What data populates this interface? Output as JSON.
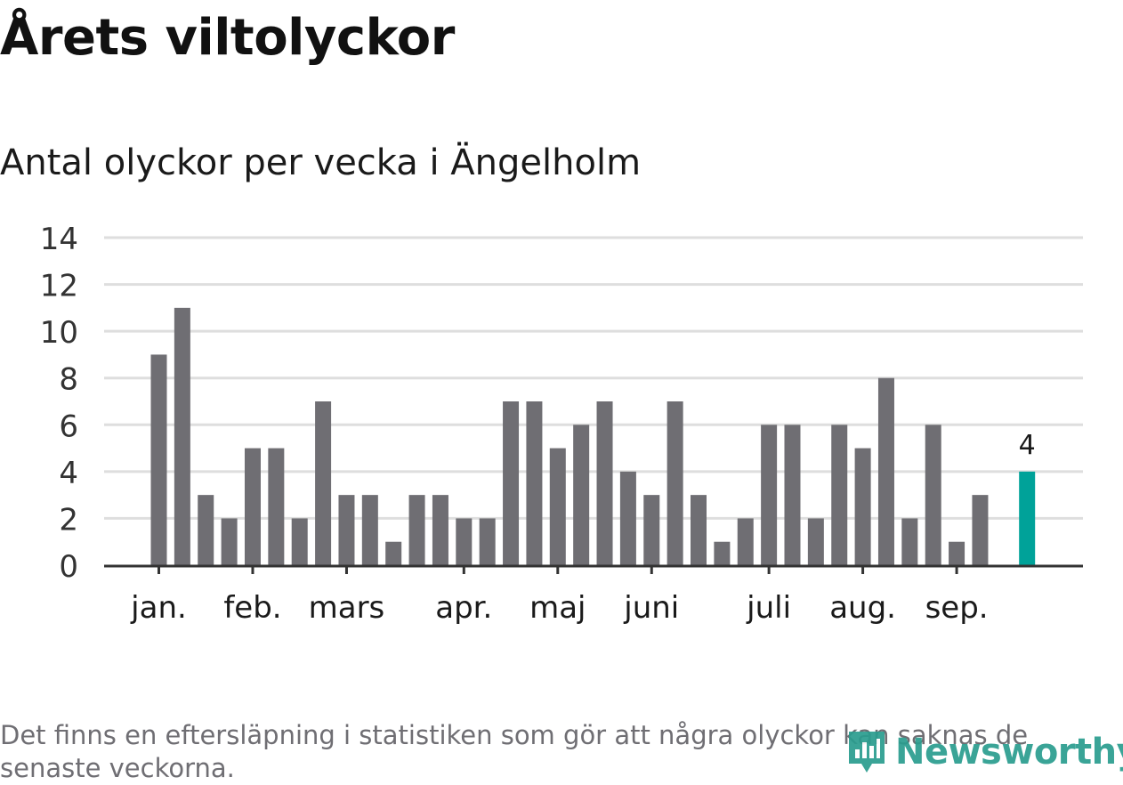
{
  "title": "Årets viltolyckor",
  "subtitle": "Antal olyckor per vecka i Ängelholm",
  "footnote": "Det finns en eftersläpning i statistiken som gör att några olyckor kan saknas de senaste veckorna.",
  "logo": {
    "text": "Newsworthy",
    "icon": "newsworthy-logo-icon"
  },
  "colors": {
    "bar": "#6f6e73",
    "highlight": "#00a299",
    "grid": "#dedede",
    "axis": "#333333",
    "logo": "#2a9d8f"
  },
  "chart_data": {
    "type": "bar",
    "title": "Antal olyckor per vecka i Ängelholm",
    "xlabel": "",
    "ylabel": "",
    "ylim": [
      0,
      14
    ],
    "yticks": [
      0,
      2,
      4,
      6,
      8,
      10,
      12,
      14
    ],
    "grid": true,
    "weeks": [
      1,
      2,
      3,
      4,
      5,
      6,
      7,
      8,
      9,
      10,
      11,
      12,
      13,
      14,
      15,
      16,
      17,
      18,
      19,
      20,
      21,
      22,
      23,
      24,
      25,
      26,
      27,
      28,
      29,
      30,
      31,
      32,
      33,
      34,
      35,
      36,
      37,
      38,
      39
    ],
    "values": [
      9,
      11,
      3,
      2,
      5,
      5,
      2,
      7,
      3,
      3,
      1,
      3,
      3,
      2,
      2,
      7,
      7,
      5,
      6,
      7,
      4,
      3,
      7,
      3,
      1,
      2,
      6,
      6,
      2,
      6,
      5,
      8,
      2,
      6,
      1,
      3,
      null,
      4,
      null
    ],
    "highlight_week": 38,
    "highlight_label": "4",
    "month_labels": [
      {
        "label": "jan.",
        "week": 1
      },
      {
        "label": "feb.",
        "week": 5
      },
      {
        "label": "mars",
        "week": 9
      },
      {
        "label": "apr.",
        "week": 14
      },
      {
        "label": "maj",
        "week": 18
      },
      {
        "label": "juni",
        "week": 22
      },
      {
        "label": "juli",
        "week": 27
      },
      {
        "label": "aug.",
        "week": 31
      },
      {
        "label": "sep.",
        "week": 35
      }
    ]
  }
}
